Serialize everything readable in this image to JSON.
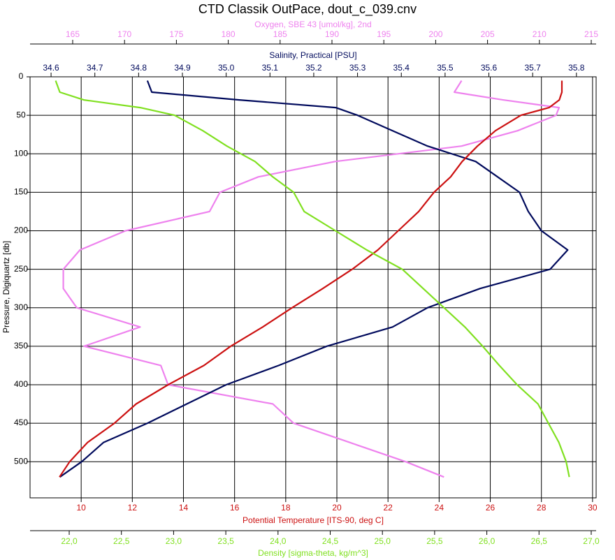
{
  "chart_data": {
    "type": "profile",
    "title": "CTD Classik OutPace, dout_c_039.cnv",
    "y_label": "Pressure, Digiquartz [db]",
    "ylim": [
      0,
      547
    ],
    "y_inverted": true,
    "yticks": [
      0,
      50,
      100,
      150,
      200,
      250,
      300,
      350,
      400,
      450,
      500
    ],
    "grid": true,
    "y": [
      5,
      20,
      30,
      40,
      50,
      70,
      90,
      110,
      130,
      150,
      175,
      200,
      225,
      250,
      275,
      300,
      325,
      350,
      375,
      400,
      425,
      450,
      475,
      500,
      520
    ],
    "series": [
      {
        "name": "Oxygen, SBE 43 [umol/kg], 2nd",
        "color": "#ee82ee",
        "xlim": [
          160.89,
          215.47
        ],
        "xticks": [
          165,
          170,
          175,
          180,
          185,
          190,
          195,
          200,
          205,
          210,
          215
        ],
        "values": [
          202.5,
          201.8,
          206.5,
          211.9,
          211.6,
          207.9,
          202.5,
          190.3,
          182.9,
          179.2,
          178.2,
          170.1,
          165.7,
          164.1,
          164.1,
          165.4,
          171.5,
          166.1,
          173.5,
          174.2,
          184.3,
          186.3,
          191.7,
          197.1,
          200.8
        ]
      },
      {
        "name": "Salinity, Practical [PSU]",
        "color": "#000a5c",
        "xlim": [
          34.552,
          35.845
        ],
        "xticks": [
          34.6,
          34.7,
          34.8,
          34.9,
          {
            "value": 35,
            "label": "35.0"
          },
          35.1,
          35.2,
          35.3,
          35.4,
          35.5,
          35.6,
          35.7,
          35.8
        ],
        "values": [
          34.82,
          34.83,
          35.03,
          35.25,
          35.3,
          35.38,
          35.46,
          35.57,
          35.62,
          35.67,
          35.69,
          35.72,
          35.78,
          35.74,
          35.58,
          35.46,
          35.38,
          35.23,
          35.12,
          35.0,
          34.91,
          34.82,
          34.72,
          34.67,
          34.62
        ]
      },
      {
        "name": "Potential Temperature [ITS-90, deg C]",
        "color": "#cc1111",
        "xlim": [
          8,
          30.14
        ],
        "xticks": [
          10,
          12,
          14,
          16,
          18,
          20,
          22,
          24,
          26,
          28,
          30
        ],
        "values": [
          28.8,
          28.8,
          28.7,
          28.3,
          27.2,
          26.2,
          25.5,
          24.9,
          24.45,
          23.8,
          23.2,
          22.4,
          21.6,
          20.6,
          19.45,
          18.25,
          17.1,
          15.85,
          14.8,
          13.4,
          12.15,
          11.3,
          10.25,
          9.55,
          9.15
        ]
      },
      {
        "name": "Density [sigma-theta, kg/m^3]",
        "color": "#80e020",
        "xlim": [
          21.625,
          27.047
        ],
        "xticks": [
          {
            "value": 22,
            "label": "22,0"
          },
          {
            "value": 22.5,
            "label": "22,5"
          },
          {
            "value": 23,
            "label": "23,0"
          },
          {
            "value": 23.5,
            "label": "23,5"
          },
          {
            "value": 24,
            "label": "24,0"
          },
          {
            "value": 24.5,
            "label": "24,5"
          },
          {
            "value": 25,
            "label": "25,0"
          },
          {
            "value": 25.5,
            "label": "25,5"
          },
          {
            "value": 26,
            "label": "26,0"
          },
          {
            "value": 26.5,
            "label": "26,5"
          },
          {
            "value": 27,
            "label": "27,0"
          }
        ],
        "values": [
          21.87,
          21.91,
          22.14,
          22.68,
          23.01,
          23.28,
          23.51,
          23.78,
          23.95,
          24.15,
          24.25,
          24.55,
          24.85,
          25.19,
          25.39,
          25.59,
          25.79,
          25.96,
          26.12,
          26.29,
          26.49,
          26.59,
          26.69,
          26.76,
          26.79
        ]
      }
    ]
  }
}
